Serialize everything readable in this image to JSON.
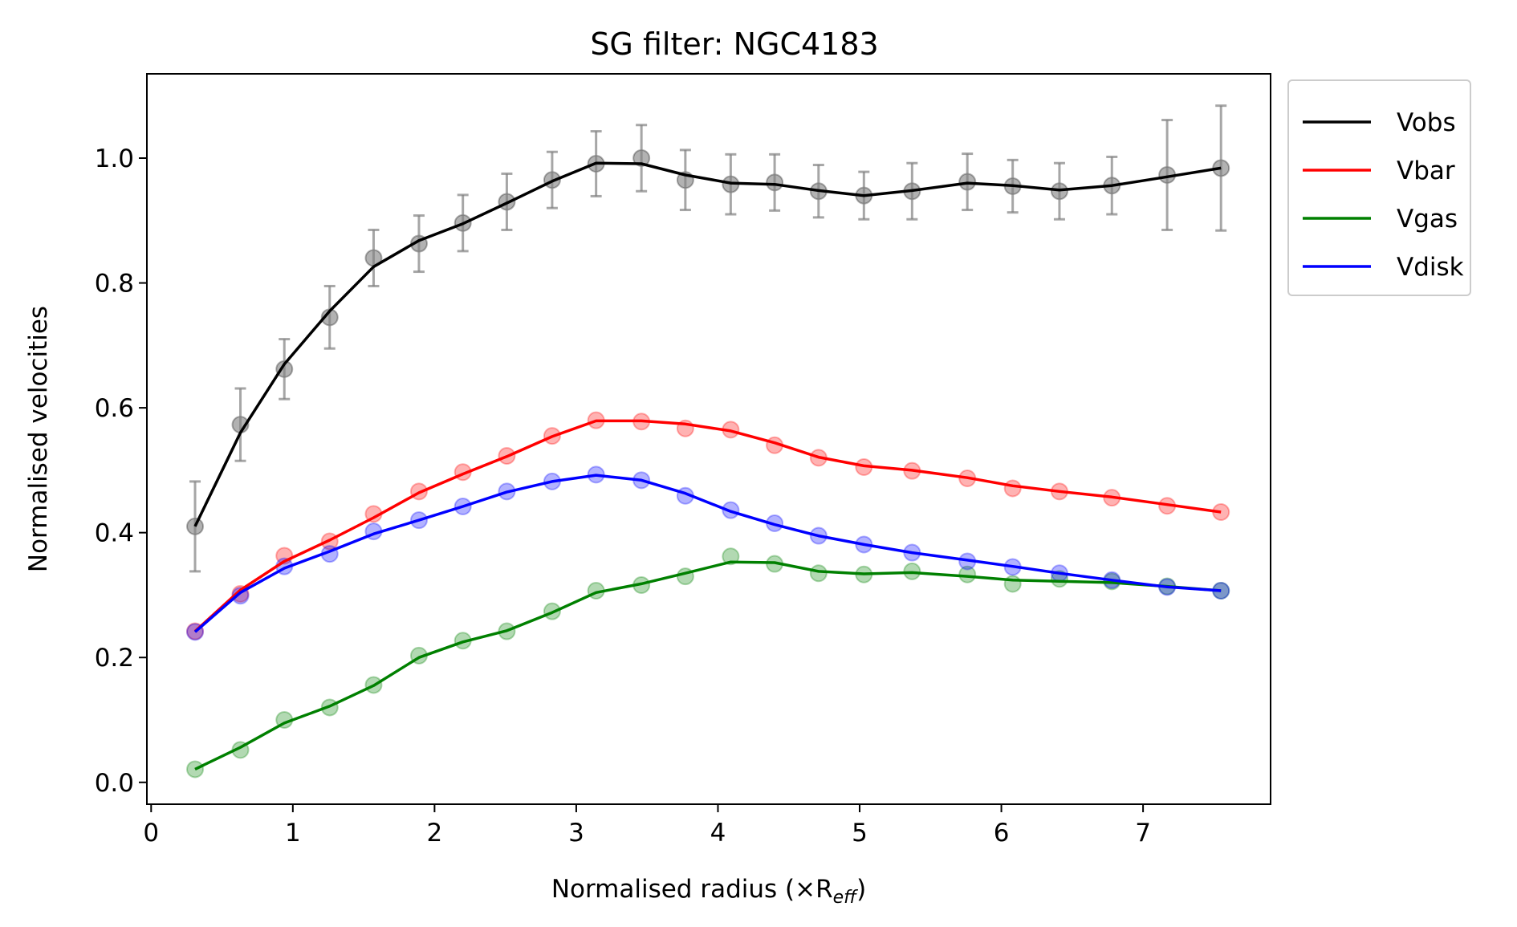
{
  "chart_data": {
    "type": "line",
    "title": "SG filter: NGC4183",
    "xlabel": "Normalised radius (×R",
    "xlabel_sub": "eff",
    "xlabel_close": ")",
    "ylabel": "Normalised velocities",
    "xlim": [
      -0.03,
      7.9
    ],
    "ylim": [
      -0.035,
      1.135
    ],
    "xticks": [
      0,
      1,
      2,
      3,
      4,
      5,
      6,
      7
    ],
    "xtick_labels": [
      "0",
      "1",
      "2",
      "3",
      "4",
      "5",
      "6",
      "7"
    ],
    "yticks": [
      0.0,
      0.2,
      0.4,
      0.6,
      0.8,
      1.0
    ],
    "ytick_labels": [
      "0.0",
      "0.2",
      "0.4",
      "0.6",
      "0.8",
      "1.0"
    ],
    "grid": false,
    "legend_position": "outside upper right",
    "x": [
      0.31,
      0.63,
      0.94,
      1.26,
      1.57,
      1.89,
      2.2,
      2.51,
      2.83,
      3.14,
      3.46,
      3.77,
      4.09,
      4.4,
      4.71,
      5.03,
      5.37,
      5.76,
      6.08,
      6.41,
      6.78,
      7.17,
      7.55
    ],
    "series": [
      {
        "name": "Vobs",
        "color": "#000000",
        "points": [
          0.41,
          0.573,
          0.662,
          0.745,
          0.84,
          0.863,
          0.896,
          0.93,
          0.965,
          0.991,
          1.0,
          0.965,
          0.958,
          0.961,
          0.947,
          0.94,
          0.947,
          0.962,
          0.955,
          0.947,
          0.956,
          0.973,
          0.984
        ],
        "line": [
          0.41,
          0.56,
          0.67,
          0.755,
          0.826,
          0.868,
          0.895,
          0.928,
          0.963,
          0.992,
          0.991,
          0.973,
          0.96,
          0.958,
          0.948,
          0.94,
          0.948,
          0.96,
          0.956,
          0.949,
          0.956,
          0.97,
          0.984
        ],
        "errors": [
          0.072,
          0.058,
          0.048,
          0.05,
          0.045,
          0.045,
          0.045,
          0.045,
          0.045,
          0.052,
          0.053,
          0.048,
          0.048,
          0.045,
          0.042,
          0.038,
          0.045,
          0.045,
          0.042,
          0.045,
          0.046,
          0.088,
          0.1
        ]
      },
      {
        "name": "Vbar",
        "color": "#ff0000",
        "points": [
          0.242,
          0.302,
          0.363,
          0.386,
          0.43,
          0.466,
          0.497,
          0.523,
          0.555,
          0.58,
          0.578,
          0.567,
          0.565,
          0.54,
          0.52,
          0.505,
          0.499,
          0.487,
          0.471,
          0.466,
          0.456,
          0.443,
          0.433
        ],
        "line": [
          0.242,
          0.308,
          0.354,
          0.388,
          0.424,
          0.464,
          0.494,
          0.522,
          0.554,
          0.579,
          0.579,
          0.574,
          0.563,
          0.544,
          0.521,
          0.507,
          0.5,
          0.488,
          0.475,
          0.466,
          0.457,
          0.445,
          0.433
        ]
      },
      {
        "name": "Vgas",
        "color": "#008000",
        "points": [
          0.021,
          0.052,
          0.1,
          0.12,
          0.156,
          0.203,
          0.227,
          0.242,
          0.274,
          0.307,
          0.316,
          0.33,
          0.362,
          0.35,
          0.335,
          0.333,
          0.338,
          0.333,
          0.318,
          0.326,
          0.322,
          0.314,
          0.307
        ],
        "line": [
          0.021,
          0.056,
          0.095,
          0.122,
          0.155,
          0.2,
          0.225,
          0.243,
          0.272,
          0.304,
          0.318,
          0.335,
          0.353,
          0.352,
          0.338,
          0.334,
          0.336,
          0.33,
          0.324,
          0.322,
          0.32,
          0.314,
          0.307
        ]
      },
      {
        "name": "Vdisk",
        "color": "#0000ff",
        "points": [
          0.241,
          0.299,
          0.346,
          0.366,
          0.402,
          0.42,
          0.442,
          0.466,
          0.482,
          0.493,
          0.484,
          0.459,
          0.436,
          0.415,
          0.395,
          0.381,
          0.368,
          0.354,
          0.345,
          0.335,
          0.324,
          0.313,
          0.307
        ],
        "line": [
          0.241,
          0.304,
          0.343,
          0.37,
          0.398,
          0.42,
          0.442,
          0.465,
          0.482,
          0.492,
          0.484,
          0.463,
          0.434,
          0.413,
          0.395,
          0.381,
          0.368,
          0.356,
          0.346,
          0.335,
          0.324,
          0.313,
          0.307
        ]
      }
    ]
  }
}
